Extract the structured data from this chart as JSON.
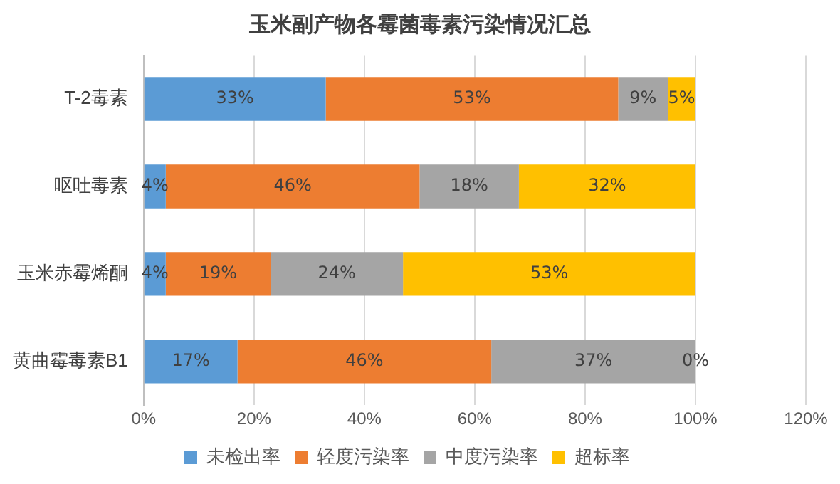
{
  "chart_data": {
    "type": "bar",
    "orientation": "horizontal",
    "stacked": true,
    "title": "玉米副产物各霉菌毒素污染情况汇总",
    "categories": [
      "T-2毒素",
      "呕吐毒素",
      "玉米赤霉烯酮",
      "黄曲霉毒素B1"
    ],
    "series": [
      {
        "name": "未检出率",
        "color": "#5b9bd5",
        "values": [
          33,
          4,
          4,
          17
        ],
        "value_labels": [
          "33%",
          "4%",
          "4%",
          "17%"
        ]
      },
      {
        "name": "轻度污染率",
        "color": "#ed7d31",
        "values": [
          53,
          46,
          19,
          46
        ],
        "value_labels": [
          "53%",
          "46%",
          "19%",
          "46%"
        ]
      },
      {
        "name": "中度污染率",
        "color": "#a5a5a5",
        "values": [
          9,
          18,
          24,
          37
        ],
        "value_labels": [
          "9%",
          "18%",
          "24%",
          "37%"
        ]
      },
      {
        "name": "超标率",
        "color": "#ffc000",
        "values": [
          5,
          32,
          53,
          0
        ],
        "value_labels": [
          "5%",
          "32%",
          "53%",
          "0%"
        ]
      }
    ],
    "xlim": [
      0,
      120
    ],
    "xticks": [
      {
        "value": 0,
        "label": "0%"
      },
      {
        "value": 20,
        "label": "20%"
      },
      {
        "value": 40,
        "label": "40%"
      },
      {
        "value": 60,
        "label": "60%"
      },
      {
        "value": 80,
        "label": "80%"
      },
      {
        "value": 100,
        "label": "100%"
      },
      {
        "value": 120,
        "label": "120%"
      }
    ],
    "grid": "x",
    "legend": "bottom"
  }
}
